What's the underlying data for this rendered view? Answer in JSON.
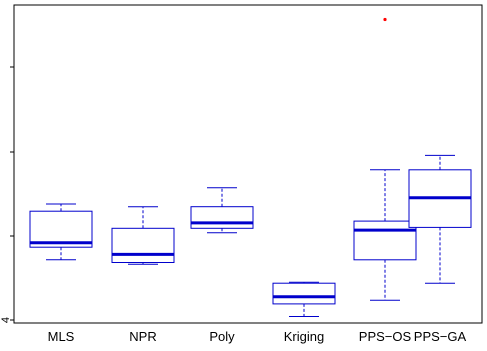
{
  "chart_data": {
    "type": "boxplot",
    "title": "",
    "xlabel": "",
    "ylabel": "",
    "categories": [
      "MLS",
      "NPR",
      "Poly",
      "Kriging",
      "PPS−OS",
      "PPS−GA"
    ],
    "y_tick_labels": [
      "4",
      "",
      "",
      "",
      ""
    ],
    "ylim": [
      0.0,
      3.5
    ],
    "box_color": "#0000cc",
    "outlier_color": "#ff0000",
    "boxes": [
      {
        "category": "MLS",
        "whisker_low": 0.68,
        "q1": 0.82,
        "median": 0.87,
        "q3": 1.22,
        "whisker_high": 1.3,
        "outliers": []
      },
      {
        "category": "NPR",
        "whisker_low": 0.63,
        "q1": 0.65,
        "median": 0.74,
        "q3": 1.03,
        "whisker_high": 1.27,
        "outliers": []
      },
      {
        "category": "Poly",
        "whisker_low": 0.98,
        "q1": 1.03,
        "median": 1.09,
        "q3": 1.27,
        "whisker_high": 1.48,
        "outliers": []
      },
      {
        "category": "Kriging",
        "whisker_low": 0.05,
        "q1": 0.19,
        "median": 0.27,
        "q3": 0.42,
        "whisker_high": 0.43,
        "outliers": []
      },
      {
        "category": "PPS−OS",
        "whisker_low": 0.23,
        "q1": 0.68,
        "median": 1.01,
        "q3": 1.11,
        "whisker_high": 1.68,
        "outliers": [
          3.35
        ]
      },
      {
        "category": "PPS−GA",
        "whisker_low": 0.42,
        "q1": 1.04,
        "median": 1.37,
        "q3": 1.68,
        "whisker_high": 1.84,
        "outliers": []
      }
    ]
  }
}
